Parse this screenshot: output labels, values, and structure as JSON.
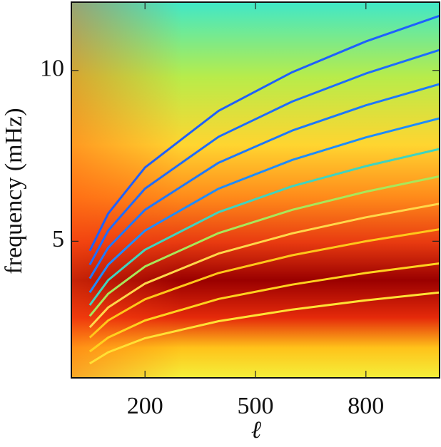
{
  "chart_data": {
    "type": "ridge-heatmap",
    "xlabel": "ℓ",
    "ylabel": "frequency (mHz)",
    "xlim": [
      0,
      1000
    ],
    "ylim": [
      1,
      12
    ],
    "xticks": [
      200,
      500,
      800
    ],
    "yticks": [
      5,
      10
    ],
    "x": [
      50,
      100,
      200,
      400,
      600,
      800,
      1000
    ],
    "series": [
      {
        "color": "#ffe135",
        "values": [
          1.42,
          1.75,
          2.16,
          2.66,
          3.0,
          3.27,
          3.5
        ]
      },
      {
        "color": "#ffd21f",
        "values": [
          1.77,
          2.18,
          2.68,
          3.31,
          3.73,
          4.07,
          4.35
        ]
      },
      {
        "color": "#ffc81a",
        "values": [
          2.18,
          2.68,
          3.3,
          4.07,
          4.59,
          5.0,
          5.35
        ]
      },
      {
        "color": "#ffd84a",
        "values": [
          2.48,
          3.06,
          3.76,
          4.64,
          5.23,
          5.7,
          6.1
        ]
      },
      {
        "color": "#a8e85a",
        "values": [
          2.81,
          3.46,
          4.26,
          5.24,
          5.92,
          6.45,
          6.9
        ]
      },
      {
        "color": "#3fd4c0",
        "values": [
          3.13,
          3.86,
          4.75,
          5.85,
          6.61,
          7.2,
          7.7
        ]
      },
      {
        "color": "#1e8cff",
        "values": [
          3.5,
          4.31,
          5.31,
          6.54,
          7.38,
          8.04,
          8.6
        ]
      },
      {
        "color": "#1e78ff",
        "values": [
          3.91,
          4.81,
          5.92,
          7.3,
          8.24,
          8.98,
          9.6
        ]
      },
      {
        "color": "#1e6cff",
        "values": [
          4.31,
          5.31,
          6.54,
          8.06,
          9.09,
          9.91,
          10.6
        ]
      },
      {
        "color": "#1e60ff",
        "values": [
          4.72,
          5.81,
          7.16,
          8.82,
          9.95,
          10.85,
          11.6
        ]
      }
    ]
  }
}
